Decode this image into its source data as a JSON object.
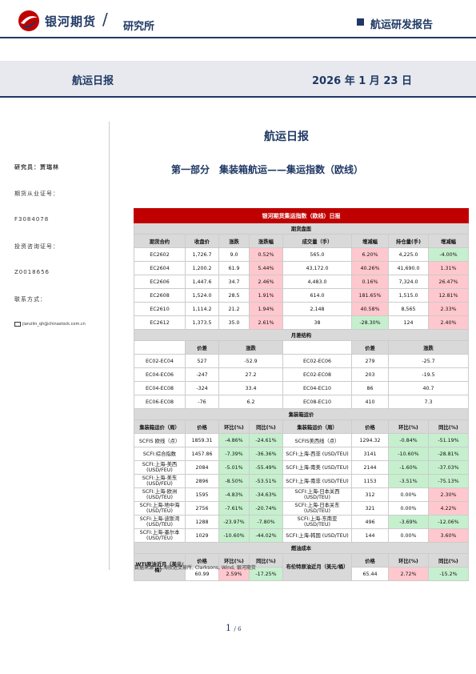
{
  "header": {
    "brand": "银河期货",
    "institute": "研究所",
    "report_type": "航运研发报告"
  },
  "band": {
    "left": "航运日报",
    "right": "2026 年 1 月 23 日"
  },
  "sidebar": {
    "researcher": "研究员：贾瑞林",
    "qual_label": "期货从业证号：",
    "qual_no": "F3084078",
    "invest_label": "投资咨询证号：",
    "invest_no": "Z0018656",
    "contact_label": "联系方式：",
    "email": "jiaruilin_qh@chinastock.com.cn"
  },
  "main_title": "航运日报",
  "section_title": "第一部分　集装箱航运——集运指数（欧线）",
  "table": {
    "title": "银河期货集运指数（欧线）日报",
    "futures_section": "期货盘面",
    "futures_headers": [
      "期货合约",
      "收盘价",
      "涨跌",
      "涨跌幅",
      "成交量（手）",
      "增减幅",
      "持仓量(手)",
      "增减幅"
    ],
    "futures_rows": [
      [
        "EC2602",
        "1,726.7",
        "9.0",
        "0.52%",
        "565.0",
        "6.20%",
        "4,225.0",
        "-4.00%"
      ],
      [
        "EC2604",
        "1,200.2",
        "61.9",
        "5.44%",
        "43,172.0",
        "40.26%",
        "41,690.0",
        "1.31%"
      ],
      [
        "EC2606",
        "1,447.6",
        "34.7",
        "2.46%",
        "4,483.0",
        "0.16%",
        "7,324.0",
        "26.47%"
      ],
      [
        "EC2608",
        "1,524.0",
        "28.5",
        "1.91%",
        "614.0",
        "181.65%",
        "1,515.0",
        "12.81%"
      ],
      [
        "EC2610",
        "1,114.2",
        "21.2",
        "1.94%",
        "2,148",
        "40.58%",
        "8,565",
        "2.33%"
      ],
      [
        "EC2612",
        "1,373.5",
        "35.0",
        "2.61%",
        "38",
        "-28.30%",
        "124",
        "2.40%"
      ]
    ],
    "spread_section": "月差结构",
    "spread_headers": [
      "价差",
      "涨跌",
      "价差",
      "涨跌"
    ],
    "spread_rows": [
      [
        "EC02-EC04",
        "527",
        "-52.9",
        "EC02-EC06",
        "279",
        "-25.7"
      ],
      [
        "EC04-EC06",
        "-247",
        "27.2",
        "EC02-EC08",
        "203",
        "-19.5"
      ],
      [
        "EC04-EC08",
        "-324",
        "33.4",
        "EC04-EC10",
        "86",
        "40.7"
      ],
      [
        "EC06-EC08",
        "-76",
        "6.2",
        "EC08-EC10",
        "410",
        "7.3"
      ]
    ],
    "freight_section": "集装箱运价",
    "freight_headers": [
      "集装箱运价（周）",
      "价格",
      "环比(%)",
      "同比(%)",
      "集装箱运价（周）",
      "价格",
      "环比(%)",
      "同比(%)"
    ],
    "freight_rows": [
      [
        "SCFIS 欧线（点）",
        "1859.31",
        "-4.86%",
        "-24.61%",
        "SCFIS美西线（点）",
        "1294.32",
        "-0.84%",
        "-51.19%"
      ],
      [
        "SCFI:综合指数",
        "1457.86",
        "-7.39%",
        "-36.36%",
        "SCFI:上海-西非 (USD/TEU)",
        "3141",
        "-10.60%",
        "-28.81%"
      ],
      [
        "SCFI:上海-美西 (USD/FEU)",
        "2084",
        "-5.01%",
        "-55.49%",
        "SCFI:上海-南美 (USD/TEU)",
        "2144",
        "-1.60%",
        "-37.03%"
      ],
      [
        "SCFI:上海-美东 (USD/FEU)",
        "2896",
        "-8.50%",
        "-53.51%",
        "SCFI:上海-南非 (USD/TEU)",
        "1153",
        "-3.51%",
        "-75.13%"
      ],
      [
        "SCFI:上海-欧洲 (USD/TEU)",
        "1595",
        "-4.83%",
        "-34.63%",
        "SCFI:上海-日本关西 (USD/TEU)",
        "312",
        "0.00%",
        "2.30%"
      ],
      [
        "SCFI:上海-地中海 (USD/TEU)",
        "2756",
        "-7.61%",
        "-20.74%",
        "SCFI:上海-日本关东 (USD/TEU)",
        "321",
        "0.00%",
        "4.22%"
      ],
      [
        "SCFI:上海-波斯湾 (USD/TEU)",
        "1288",
        "-23.97%",
        "-7.80%",
        "SCFI:上海-东南亚 (USD/TEU)",
        "496",
        "-3.69%",
        "-12.06%"
      ],
      [
        "SCFI:上海-墨尔本 (USD/TEU)",
        "1029",
        "-10.60%",
        "-44.02%",
        "SCFI:上海-韩国 (USD/TEU)",
        "144",
        "0.00%",
        "3.60%"
      ]
    ],
    "fuel_section": "燃油成本",
    "fuel_headers": [
      "WTI原油近月（美元/桶）",
      "价格",
      "环比(%)",
      "同比(%)",
      "布伦特原油近月（美元/桶）",
      "价格",
      "环比(%)",
      "同比(%)"
    ],
    "fuel_row": [
      "",
      "60.99",
      "2.59%",
      "-17.25%",
      "",
      "65.44",
      "2.72%",
      "-15.2%"
    ]
  },
  "note": "数据来源　上海航运交易所, Clarksons, Wind, 银河期货",
  "page": {
    "current": "1",
    "total": "6"
  },
  "colors": {
    "navy": "#1f3864",
    "red": "#c00000",
    "pink": "#ffc7ce",
    "light_green": "#c6efce"
  }
}
